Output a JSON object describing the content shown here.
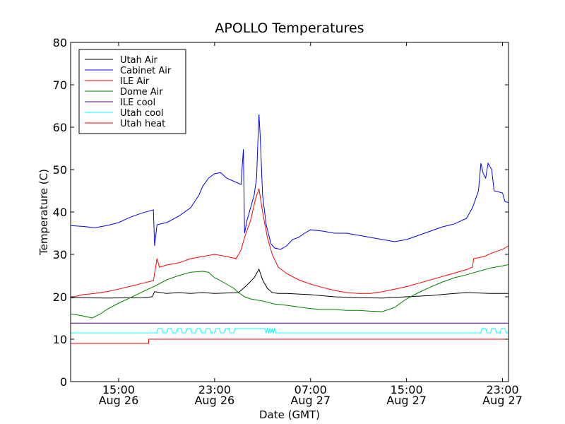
{
  "chart_data": {
    "type": "line",
    "title": "APOLLO Temperatures",
    "xlabel": "Date (GMT)",
    "ylabel": "Temperature (C)",
    "xlim": [
      11.0,
      47.5
    ],
    "ylim": [
      0,
      80
    ],
    "yticks": [
      0,
      10,
      20,
      30,
      40,
      50,
      60,
      70,
      80
    ],
    "xticks": [
      {
        "x": 15,
        "line1": "15:00",
        "line2": "Aug 26"
      },
      {
        "x": 23,
        "line1": "23:00",
        "line2": "Aug 26"
      },
      {
        "x": 31,
        "line1": "07:00",
        "line2": "Aug 27"
      },
      {
        "x": 39,
        "line1": "15:00",
        "line2": "Aug 27"
      },
      {
        "x": 47,
        "line1": "23:00",
        "line2": "Aug 27"
      }
    ],
    "x_unit": "hours since Aug 26 00:00 GMT",
    "legend_position": "top-left",
    "series": [
      {
        "name": "Utah Air",
        "color": "#000000",
        "points": [
          [
            11,
            19.8
          ],
          [
            14,
            19.7
          ],
          [
            17,
            19.8
          ],
          [
            17.8,
            20.0
          ],
          [
            18,
            21.2
          ],
          [
            19,
            20.8
          ],
          [
            20,
            21.0
          ],
          [
            21,
            20.8
          ],
          [
            22,
            21.0
          ],
          [
            23,
            20.8
          ],
          [
            24,
            20.9
          ],
          [
            25,
            21.0
          ],
          [
            25.6,
            22.5
          ],
          [
            26.3,
            24.5
          ],
          [
            26.7,
            26.5
          ],
          [
            27.0,
            24.0
          ],
          [
            27.4,
            22.0
          ],
          [
            27.8,
            21.0
          ],
          [
            28.3,
            20.8
          ],
          [
            29,
            20.8
          ],
          [
            31,
            20.5
          ],
          [
            33,
            20.0
          ],
          [
            35,
            19.8
          ],
          [
            37,
            19.7
          ],
          [
            39,
            20.0
          ],
          [
            41,
            20.3
          ],
          [
            43,
            20.8
          ],
          [
            44,
            21.0
          ],
          [
            45,
            20.9
          ],
          [
            46,
            20.8
          ],
          [
            47.5,
            20.8
          ]
        ]
      },
      {
        "name": "Cabinet Air",
        "color": "#0000ff",
        "points": [
          [
            11,
            36.8
          ],
          [
            12,
            36.6
          ],
          [
            13,
            36.3
          ],
          [
            14,
            36.8
          ],
          [
            15,
            37.5
          ],
          [
            16,
            38.8
          ],
          [
            17,
            39.8
          ],
          [
            17.9,
            40.5
          ],
          [
            18.0,
            32.0
          ],
          [
            18.2,
            37.0
          ],
          [
            19,
            37.5
          ],
          [
            20,
            39.0
          ],
          [
            21,
            41.0
          ],
          [
            21.7,
            44.0
          ],
          [
            22,
            46.0
          ],
          [
            22.5,
            48.0
          ],
          [
            23,
            49.0
          ],
          [
            23.5,
            49.3
          ],
          [
            24,
            48.0
          ],
          [
            24.8,
            47.0
          ],
          [
            25.2,
            46.5
          ],
          [
            25.4,
            54.8
          ],
          [
            25.5,
            35.0
          ],
          [
            25.7,
            38.0
          ],
          [
            26.3,
            44.0
          ],
          [
            26.5,
            48.0
          ],
          [
            26.6,
            56.0
          ],
          [
            26.7,
            63.0
          ],
          [
            26.8,
            58.0
          ],
          [
            27.0,
            44.0
          ],
          [
            27.3,
            37.0
          ],
          [
            27.7,
            32.5
          ],
          [
            28,
            31.5
          ],
          [
            28.5,
            31.2
          ],
          [
            29,
            32.0
          ],
          [
            29.5,
            33.5
          ],
          [
            30,
            34.0
          ],
          [
            30.5,
            35.0
          ],
          [
            31,
            35.8
          ],
          [
            32,
            35.5
          ],
          [
            33,
            35.0
          ],
          [
            34,
            35.0
          ],
          [
            35,
            34.5
          ],
          [
            36,
            34.0
          ],
          [
            37,
            33.5
          ],
          [
            38,
            33.0
          ],
          [
            39,
            33.5
          ],
          [
            40,
            34.5
          ],
          [
            41,
            35.5
          ],
          [
            42,
            36.5
          ],
          [
            43,
            37.2
          ],
          [
            44,
            38.5
          ],
          [
            44.5,
            41.0
          ],
          [
            45,
            45.0
          ],
          [
            45.2,
            51.5
          ],
          [
            45.4,
            49.0
          ],
          [
            45.6,
            48.0
          ],
          [
            45.8,
            51.5
          ],
          [
            46.1,
            50.0
          ],
          [
            46.3,
            45.0
          ],
          [
            47,
            44.5
          ],
          [
            47.2,
            42.5
          ],
          [
            47.5,
            42.2
          ]
        ]
      },
      {
        "name": "ILE Air",
        "color": "#ff0000",
        "points": [
          [
            11,
            19.8
          ],
          [
            12,
            20.5
          ],
          [
            13,
            20.8
          ],
          [
            14,
            21.2
          ],
          [
            15,
            21.8
          ],
          [
            16,
            22.5
          ],
          [
            17,
            23.2
          ],
          [
            17.9,
            23.8
          ],
          [
            18.2,
            29.0
          ],
          [
            18.4,
            27.0
          ],
          [
            19,
            27.5
          ],
          [
            20,
            28.0
          ],
          [
            21,
            29.0
          ],
          [
            22,
            29.5
          ],
          [
            23,
            30.0
          ],
          [
            24,
            29.5
          ],
          [
            24.8,
            29.0
          ],
          [
            25.2,
            31.0
          ],
          [
            25.5,
            34.0
          ],
          [
            26,
            38.0
          ],
          [
            26.4,
            43.0
          ],
          [
            26.7,
            45.5
          ],
          [
            27.0,
            40.0
          ],
          [
            27.4,
            34.0
          ],
          [
            27.8,
            30.0
          ],
          [
            28.3,
            27.0
          ],
          [
            29,
            25.5
          ],
          [
            30,
            24.0
          ],
          [
            31,
            23.0
          ],
          [
            32,
            22.2
          ],
          [
            33,
            21.5
          ],
          [
            34,
            21.0
          ],
          [
            35,
            20.8
          ],
          [
            36,
            20.8
          ],
          [
            37,
            21.2
          ],
          [
            38,
            21.8
          ],
          [
            39,
            22.4
          ],
          [
            40,
            23.2
          ],
          [
            41,
            24.0
          ],
          [
            42,
            24.8
          ],
          [
            43,
            25.6
          ],
          [
            44,
            26.4
          ],
          [
            44.5,
            27.0
          ],
          [
            44.6,
            29.0
          ],
          [
            45.5,
            29.5
          ],
          [
            46,
            30.2
          ],
          [
            47,
            31.2
          ],
          [
            47.5,
            32.0
          ]
        ]
      },
      {
        "name": "Dome Air",
        "color": "#008000",
        "points": [
          [
            11,
            16.0
          ],
          [
            12,
            15.5
          ],
          [
            12.8,
            15.0
          ],
          [
            13.5,
            16.0
          ],
          [
            14,
            17.0
          ],
          [
            15,
            18.5
          ],
          [
            16,
            19.8
          ],
          [
            17,
            21.2
          ],
          [
            18,
            22.5
          ],
          [
            19,
            24.0
          ],
          [
            20,
            25.0
          ],
          [
            21,
            25.8
          ],
          [
            22,
            26.0
          ],
          [
            22.5,
            25.8
          ],
          [
            23,
            24.5
          ],
          [
            23.5,
            23.8
          ],
          [
            24,
            23.0
          ],
          [
            24.6,
            22.0
          ],
          [
            25,
            21.0
          ],
          [
            25.5,
            20.0
          ],
          [
            26,
            19.5
          ],
          [
            27,
            19.0
          ],
          [
            28,
            18.3
          ],
          [
            29,
            18.0
          ],
          [
            30,
            17.6
          ],
          [
            31,
            17.2
          ],
          [
            32,
            17.0
          ],
          [
            33,
            17.0
          ],
          [
            34,
            16.8
          ],
          [
            35,
            16.8
          ],
          [
            36,
            16.6
          ],
          [
            37,
            16.5
          ],
          [
            38,
            17.5
          ],
          [
            39,
            19.5
          ],
          [
            40,
            21.0
          ],
          [
            41,
            22.3
          ],
          [
            42,
            23.5
          ],
          [
            43,
            24.5
          ],
          [
            44,
            25.2
          ],
          [
            45,
            26.0
          ],
          [
            46,
            26.8
          ],
          [
            47,
            27.3
          ],
          [
            47.5,
            27.6
          ]
        ]
      },
      {
        "name": "ILE cool",
        "color": "#4b0082",
        "points": [
          [
            11,
            13.8
          ],
          [
            47.5,
            13.8
          ]
        ]
      },
      {
        "name": "Utah cool",
        "color": "#00ffff",
        "points": [
          [
            11,
            11.5
          ],
          [
            18.2,
            11.5
          ],
          [
            18.3,
            12.5
          ],
          [
            18.6,
            12.5
          ],
          [
            18.7,
            11.5
          ],
          [
            19.0,
            11.5
          ],
          [
            19.1,
            12.5
          ],
          [
            19.4,
            12.5
          ],
          [
            19.5,
            11.5
          ],
          [
            19.8,
            11.5
          ],
          [
            19.9,
            12.5
          ],
          [
            20.2,
            12.5
          ],
          [
            20.3,
            11.5
          ],
          [
            20.6,
            11.5
          ],
          [
            20.7,
            12.5
          ],
          [
            21.0,
            12.5
          ],
          [
            21.1,
            11.5
          ],
          [
            21.4,
            11.5
          ],
          [
            21.5,
            12.5
          ],
          [
            21.8,
            12.5
          ],
          [
            21.9,
            11.5
          ],
          [
            22.2,
            11.5
          ],
          [
            22.3,
            12.5
          ],
          [
            22.6,
            12.5
          ],
          [
            22.7,
            11.5
          ],
          [
            23.0,
            11.5
          ],
          [
            23.1,
            12.5
          ],
          [
            23.4,
            12.5
          ],
          [
            23.5,
            11.5
          ],
          [
            23.8,
            11.5
          ],
          [
            23.9,
            12.5
          ],
          [
            24.2,
            12.5
          ],
          [
            24.3,
            11.5
          ],
          [
            24.6,
            11.5
          ],
          [
            24.7,
            12.5
          ],
          [
            27.2,
            12.5
          ],
          [
            27.3,
            11.5
          ],
          [
            27.4,
            12.5
          ],
          [
            27.5,
            11.5
          ],
          [
            27.6,
            12.5
          ],
          [
            27.7,
            11.5
          ],
          [
            27.8,
            12.5
          ],
          [
            27.9,
            11.5
          ],
          [
            28.0,
            12.5
          ],
          [
            28.1,
            11.5
          ],
          [
            45.2,
            11.5
          ],
          [
            45.3,
            12.5
          ],
          [
            45.6,
            12.5
          ],
          [
            45.7,
            11.5
          ],
          [
            46.0,
            11.5
          ],
          [
            46.1,
            12.5
          ],
          [
            46.4,
            12.5
          ],
          [
            46.5,
            11.5
          ],
          [
            46.8,
            11.5
          ],
          [
            46.9,
            12.5
          ],
          [
            47.2,
            12.5
          ],
          [
            47.3,
            11.5
          ],
          [
            47.5,
            11.5
          ]
        ]
      },
      {
        "name": "Utah heat",
        "color": "#ff0000",
        "points": [
          [
            11,
            9.0
          ],
          [
            17.5,
            9.0
          ],
          [
            17.5,
            10.0
          ],
          [
            47.5,
            10.0
          ]
        ]
      }
    ]
  }
}
